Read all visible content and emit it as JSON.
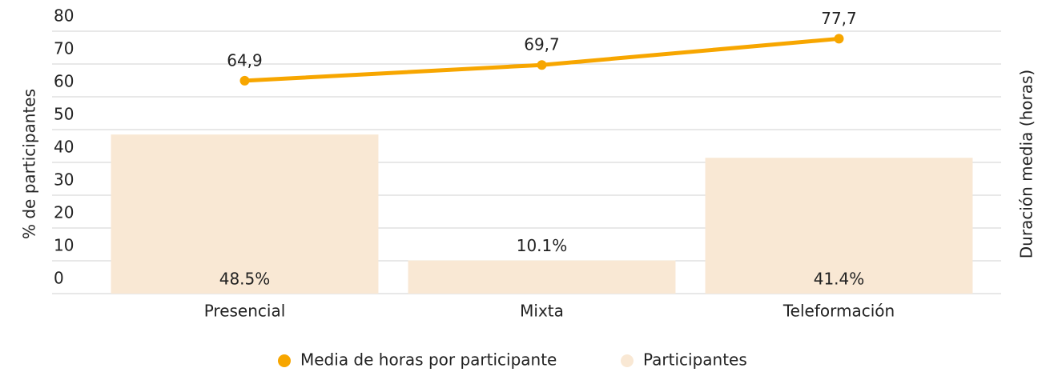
{
  "chart_data": {
    "type": "combo",
    "y_label": "% de participantes",
    "y2_label": "Duración media (horas)",
    "categories": [
      "Presencial",
      "Mixta",
      "Teleformación"
    ],
    "series": [
      {
        "name": "Media de horas por participante",
        "type": "line",
        "color": "#f7a600",
        "values": [
          64.9,
          69.7,
          77.7
        ],
        "value_labels": [
          "64,9",
          "69,7",
          "77,7"
        ]
      },
      {
        "name": "Participantes",
        "type": "bar",
        "color": "#f9e8d4",
        "values": [
          48.5,
          10.1,
          41.4
        ],
        "value_labels": [
          "48.5%",
          "10.1%",
          "41.4%"
        ]
      }
    ],
    "ylim": [
      0,
      80
    ],
    "yticks": [
      0,
      10,
      20,
      30,
      40,
      50,
      60,
      70,
      80
    ],
    "grid": true,
    "legend": "bottom"
  }
}
